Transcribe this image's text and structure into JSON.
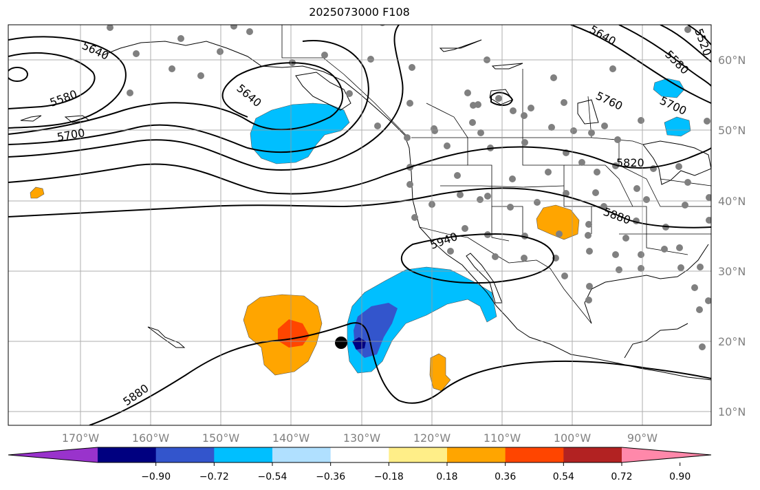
{
  "title": "2025073000 F108",
  "lat_labels": [
    "60°N",
    "50°N",
    "40°N",
    "30°N",
    "20°N",
    "10°N"
  ],
  "lon_labels": [
    "170°W",
    "160°W",
    "150°W",
    "140°W",
    "130°W",
    "120°W",
    "110°W",
    "100°W",
    "90°W"
  ],
  "contour_labels": [
    "5640",
    "5580",
    "5700",
    "5640",
    "5640",
    "5580",
    "5700",
    "5760",
    "5820",
    "5880",
    "5940",
    "5880",
    "5520"
  ],
  "colorbar": {
    "colors": [
      "#9933cc",
      "#000080",
      "#3355cc",
      "#00bfff",
      "#b0e0ff",
      "#ffffff",
      "#ffee88",
      "#ffa500",
      "#ff4500",
      "#b22222",
      "#ff88aa"
    ],
    "tick_labels": [
      "−0.90",
      "−0.72",
      "−0.54",
      "−0.36",
      "−0.18",
      "0.18",
      "0.36",
      "0.54",
      "0.72",
      "0.90"
    ]
  }
}
